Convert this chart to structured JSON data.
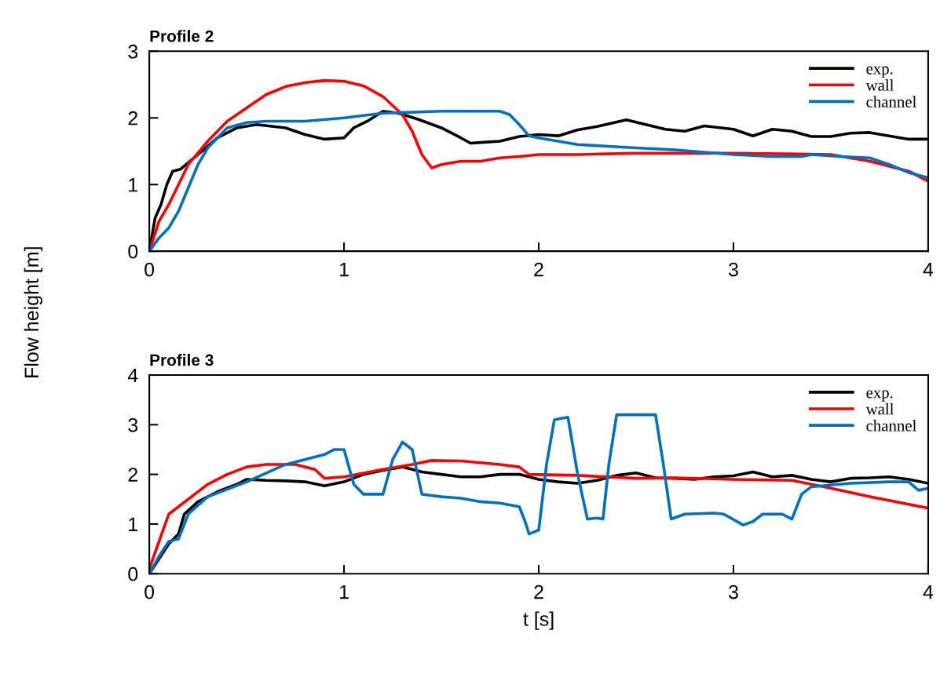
{
  "chart_data": [
    {
      "type": "line",
      "title": "Profile 2",
      "ylabel": "Flow height [m]",
      "xlim": [
        0,
        4
      ],
      "ylim": [
        0,
        3
      ],
      "xticks": [
        0,
        1,
        2,
        3,
        4
      ],
      "yticks": [
        0,
        1,
        2,
        3
      ],
      "grid": false,
      "legend": "top right",
      "marker": "none",
      "line_style": "solid",
      "series": [
        {
          "name": "exp.",
          "color": "#000000",
          "x": [
            0,
            0.03,
            0.06,
            0.09,
            0.12,
            0.16,
            0.25,
            0.35,
            0.45,
            0.55,
            0.7,
            0.8,
            0.9,
            1.0,
            1.05,
            1.12,
            1.2,
            1.28,
            1.38,
            1.5,
            1.6,
            1.65,
            1.7,
            1.8,
            1.9,
            2.0,
            2.1,
            2.2,
            2.3,
            2.45,
            2.55,
            2.65,
            2.75,
            2.85,
            3.0,
            3.1,
            3.2,
            3.3,
            3.4,
            3.5,
            3.6,
            3.7,
            3.8,
            3.9,
            4.0
          ],
          "values": [
            0,
            0.5,
            0.7,
            1.0,
            1.2,
            1.23,
            1.45,
            1.7,
            1.85,
            1.9,
            1.85,
            1.75,
            1.68,
            1.7,
            1.85,
            1.95,
            2.1,
            2.07,
            1.98,
            1.85,
            1.7,
            1.62,
            1.63,
            1.65,
            1.72,
            1.75,
            1.73,
            1.82,
            1.87,
            1.97,
            1.9,
            1.83,
            1.8,
            1.88,
            1.83,
            1.73,
            1.83,
            1.8,
            1.72,
            1.72,
            1.77,
            1.78,
            1.73,
            1.68,
            1.68
          ]
        },
        {
          "name": "wall",
          "color": "#ff0000",
          "x": [
            0,
            0.05,
            0.1,
            0.15,
            0.2,
            0.3,
            0.4,
            0.5,
            0.6,
            0.7,
            0.8,
            0.9,
            1.0,
            1.1,
            1.2,
            1.3,
            1.35,
            1.4,
            1.45,
            1.5,
            1.6,
            1.7,
            1.8,
            1.9,
            2.0,
            2.2,
            2.5,
            3.0,
            3.5,
            3.7,
            3.9,
            4.0
          ],
          "values": [
            0,
            0.45,
            0.7,
            1.0,
            1.3,
            1.65,
            1.95,
            2.15,
            2.35,
            2.47,
            2.53,
            2.56,
            2.55,
            2.48,
            2.32,
            2.05,
            1.8,
            1.45,
            1.25,
            1.3,
            1.35,
            1.35,
            1.4,
            1.42,
            1.45,
            1.45,
            1.47,
            1.47,
            1.45,
            1.35,
            1.2,
            1.05
          ]
        },
        {
          "name": "channel",
          "color": "#0070c0",
          "x": [
            0,
            0.05,
            0.1,
            0.15,
            0.2,
            0.25,
            0.3,
            0.4,
            0.5,
            0.6,
            0.8,
            1.0,
            1.2,
            1.5,
            1.8,
            1.85,
            1.9,
            1.95,
            2.0,
            2.2,
            2.5,
            2.7,
            3.0,
            3.2,
            3.35,
            3.4,
            3.55,
            3.7,
            3.8,
            3.9,
            4.0
          ],
          "values": [
            0,
            0.2,
            0.35,
            0.6,
            0.95,
            1.3,
            1.55,
            1.85,
            1.93,
            1.95,
            1.95,
            2.0,
            2.07,
            2.1,
            2.1,
            2.05,
            1.9,
            1.73,
            1.7,
            1.6,
            1.55,
            1.52,
            1.45,
            1.42,
            1.42,
            1.45,
            1.42,
            1.4,
            1.3,
            1.18,
            1.1
          ]
        }
      ]
    },
    {
      "type": "line",
      "title": "Profile 3",
      "xlabel": "t [s]",
      "xlim": [
        0,
        4
      ],
      "ylim": [
        0,
        4
      ],
      "xticks": [
        0,
        1,
        2,
        3,
        4
      ],
      "yticks": [
        0,
        1,
        2,
        3,
        4
      ],
      "grid": false,
      "legend": "top right",
      "marker": "none",
      "line_style": "solid",
      "series": [
        {
          "name": "exp.",
          "color": "#000000",
          "x": [
            0,
            0.05,
            0.1,
            0.15,
            0.18,
            0.25,
            0.35,
            0.45,
            0.5,
            0.6,
            0.7,
            0.8,
            0.9,
            1.0,
            1.1,
            1.2,
            1.3,
            1.4,
            1.5,
            1.6,
            1.7,
            1.8,
            1.9,
            2.0,
            2.1,
            2.2,
            2.3,
            2.4,
            2.5,
            2.6,
            2.7,
            2.8,
            2.9,
            3.0,
            3.1,
            3.2,
            3.3,
            3.4,
            3.5,
            3.6,
            3.7,
            3.8,
            3.9,
            4.0
          ],
          "values": [
            0,
            0.3,
            0.6,
            0.8,
            1.2,
            1.45,
            1.65,
            1.8,
            1.9,
            1.88,
            1.87,
            1.85,
            1.77,
            1.85,
            2.0,
            2.08,
            2.15,
            2.05,
            2.0,
            1.95,
            1.95,
            2.0,
            2.0,
            1.9,
            1.85,
            1.82,
            1.88,
            1.98,
            2.03,
            1.93,
            1.92,
            1.9,
            1.95,
            1.97,
            2.05,
            1.95,
            1.98,
            1.9,
            1.85,
            1.92,
            1.93,
            1.95,
            1.9,
            1.82
          ]
        },
        {
          "name": "wall",
          "color": "#ff0000",
          "x": [
            0,
            0.1,
            0.2,
            0.3,
            0.4,
            0.5,
            0.6,
            0.75,
            0.85,
            0.9,
            1.0,
            1.2,
            1.35,
            1.45,
            1.6,
            1.8,
            1.9,
            1.95,
            2.2,
            2.5,
            2.7,
            3.0,
            3.3,
            3.5,
            3.7,
            4.0
          ],
          "values": [
            0.1,
            1.2,
            1.5,
            1.8,
            2.0,
            2.15,
            2.2,
            2.2,
            2.1,
            1.92,
            1.95,
            2.1,
            2.2,
            2.28,
            2.27,
            2.2,
            2.15,
            2.0,
            1.98,
            1.92,
            1.93,
            1.9,
            1.88,
            1.72,
            1.55,
            1.32
          ]
        },
        {
          "name": "channel",
          "color": "#0070c0",
          "x": [
            0,
            0.05,
            0.1,
            0.15,
            0.2,
            0.3,
            0.5,
            0.7,
            0.9,
            0.95,
            1.0,
            1.05,
            1.1,
            1.2,
            1.25,
            1.3,
            1.35,
            1.4,
            1.5,
            1.6,
            1.7,
            1.8,
            1.9,
            1.93,
            1.95,
            2.0,
            2.04,
            2.08,
            2.15,
            2.2,
            2.25,
            2.3,
            2.33,
            2.36,
            2.4,
            2.6,
            2.64,
            2.68,
            2.75,
            2.9,
            2.95,
            3.05,
            3.1,
            3.15,
            3.25,
            3.3,
            3.35,
            3.4,
            3.6,
            3.8,
            3.9,
            3.95,
            4.0
          ],
          "values": [
            0,
            0.35,
            0.65,
            0.7,
            1.2,
            1.55,
            1.85,
            2.2,
            2.4,
            2.5,
            2.5,
            1.8,
            1.6,
            1.6,
            2.3,
            2.65,
            2.5,
            1.6,
            1.55,
            1.52,
            1.45,
            1.42,
            1.35,
            1.05,
            0.8,
            0.88,
            2.2,
            3.1,
            3.15,
            2.0,
            1.1,
            1.12,
            1.1,
            2.2,
            3.2,
            3.2,
            2.2,
            1.1,
            1.2,
            1.22,
            1.2,
            0.98,
            1.05,
            1.2,
            1.2,
            1.1,
            1.6,
            1.75,
            1.82,
            1.85,
            1.85,
            1.68,
            1.72
          ]
        }
      ]
    }
  ]
}
